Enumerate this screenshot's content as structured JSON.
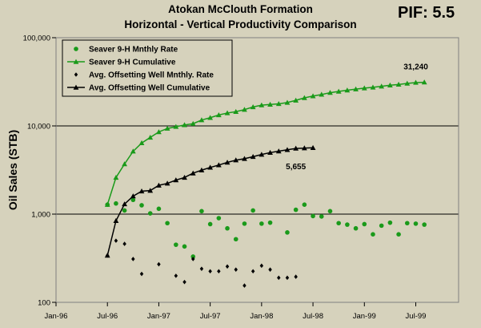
{
  "header": {
    "title_line1": "Atokan McClouth Formation",
    "title_line2": "Horizontal - Vertical Productivity Comparison",
    "pif_label": "PIF: 5.5"
  },
  "chart_data": {
    "type": "scatter",
    "yscale": "log",
    "ylabel": "Oil Sales (STB)",
    "ylim": [
      100,
      100000
    ],
    "xlim": [
      "1996-01",
      "1999-12"
    ],
    "y_ticks": [
      "100",
      "1,000",
      "10,000",
      "100,000"
    ],
    "x_ticks": [
      "Jan-96",
      "Jul-96",
      "Jan-97",
      "Jul-97",
      "Jan-98",
      "Jul-98",
      "Jan-99",
      "Jul-99"
    ],
    "grid": "horizontal major lines",
    "legend_position": "top-left",
    "colors": {
      "green": "#1a9a1a",
      "black": "#000000",
      "background": "#d6d2bc"
    },
    "series": [
      {
        "name": "Seaver 9-H Mnthly Rate",
        "marker": "circle",
        "color": "#1a9a1a",
        "line": false,
        "points": [
          [
            "1996-07",
            1280
          ],
          [
            "1996-08",
            1320
          ],
          [
            "1996-09",
            1100
          ],
          [
            "1996-10",
            1450
          ],
          [
            "1996-11",
            1260
          ],
          [
            "1996-12",
            1020
          ],
          [
            "1997-01",
            1150
          ],
          [
            "1997-02",
            790
          ],
          [
            "1997-03",
            450
          ],
          [
            "1997-04",
            430
          ],
          [
            "1997-05",
            330
          ],
          [
            "1997-06",
            1080
          ],
          [
            "1997-07",
            770
          ],
          [
            "1997-08",
            900
          ],
          [
            "1997-09",
            690
          ],
          [
            "1997-10",
            520
          ],
          [
            "1997-11",
            780
          ],
          [
            "1997-12",
            1100
          ],
          [
            "1998-01",
            780
          ],
          [
            "1998-02",
            800
          ],
          [
            "1998-04",
            620
          ],
          [
            "1998-05",
            1120
          ],
          [
            "1998-06",
            1280
          ],
          [
            "1998-07",
            950
          ],
          [
            "1998-08",
            940
          ],
          [
            "1998-09",
            1080
          ],
          [
            "1998-10",
            790
          ],
          [
            "1998-11",
            760
          ],
          [
            "1998-12",
            690
          ],
          [
            "1999-01",
            770
          ],
          [
            "1999-02",
            590
          ],
          [
            "1999-03",
            740
          ],
          [
            "1999-04",
            800
          ],
          [
            "1999-05",
            590
          ],
          [
            "1999-06",
            790
          ],
          [
            "1999-07",
            780
          ],
          [
            "1999-08",
            760
          ]
        ]
      },
      {
        "name": "Seaver 9-H Cumulative",
        "marker": "triangle",
        "color": "#1a9a1a",
        "line": true,
        "points": [
          [
            "1996-07",
            1280
          ],
          [
            "1996-08",
            2600
          ],
          [
            "1996-09",
            3700
          ],
          [
            "1996-10",
            5150
          ],
          [
            "1996-11",
            6400
          ],
          [
            "1996-12",
            7400
          ],
          [
            "1997-01",
            8550
          ],
          [
            "1997-02",
            9350
          ],
          [
            "1997-03",
            9800
          ],
          [
            "1997-04",
            10250
          ],
          [
            "1997-05",
            10600
          ],
          [
            "1997-06",
            11650
          ],
          [
            "1997-07",
            12400
          ],
          [
            "1997-08",
            13300
          ],
          [
            "1997-09",
            14000
          ],
          [
            "1997-10",
            14500
          ],
          [
            "1997-11",
            15300
          ],
          [
            "1997-12",
            16400
          ],
          [
            "1998-01",
            17200
          ],
          [
            "1998-02",
            17500
          ],
          [
            "1998-03",
            17800
          ],
          [
            "1998-04",
            18400
          ],
          [
            "1998-05",
            19500
          ],
          [
            "1998-06",
            20800
          ],
          [
            "1998-07",
            21800
          ],
          [
            "1998-08",
            22700
          ],
          [
            "1998-09",
            23800
          ],
          [
            "1998-10",
            24600
          ],
          [
            "1998-11",
            25400
          ],
          [
            "1998-12",
            26100
          ],
          [
            "1999-01",
            26800
          ],
          [
            "1999-02",
            27400
          ],
          [
            "1999-03",
            28100
          ],
          [
            "1999-04",
            28900
          ],
          [
            "1999-05",
            29500
          ],
          [
            "1999-06",
            30300
          ],
          [
            "1999-07",
            31000
          ],
          [
            "1999-08",
            31240
          ]
        ]
      },
      {
        "name": "Avg. Offsetting Well Mnthly. Rate",
        "marker": "diamond",
        "color": "#000000",
        "line": false,
        "points": [
          [
            "1996-07",
            340
          ],
          [
            "1996-08",
            500
          ],
          [
            "1996-09",
            460
          ],
          [
            "1996-10",
            310
          ],
          [
            "1996-11",
            210
          ],
          [
            "1997-01",
            270
          ],
          [
            "1997-03",
            200
          ],
          [
            "1997-04",
            170
          ],
          [
            "1997-05",
            310
          ],
          [
            "1997-06",
            240
          ],
          [
            "1997-07",
            225
          ],
          [
            "1997-08",
            225
          ],
          [
            "1997-09",
            255
          ],
          [
            "1997-10",
            235
          ],
          [
            "1997-11",
            155
          ],
          [
            "1997-12",
            225
          ],
          [
            "1998-01",
            260
          ],
          [
            "1998-02",
            235
          ],
          [
            "1998-03",
            190
          ],
          [
            "1998-04",
            190
          ],
          [
            "1998-05",
            195
          ]
        ]
      },
      {
        "name": "Avg. Offsetting Well Cumulative",
        "marker": "triangle",
        "color": "#000000",
        "line": true,
        "points": [
          [
            "1996-07",
            340
          ],
          [
            "1996-08",
            840
          ],
          [
            "1996-09",
            1300
          ],
          [
            "1996-10",
            1600
          ],
          [
            "1996-11",
            1820
          ],
          [
            "1996-12",
            1850
          ],
          [
            "1997-01",
            2120
          ],
          [
            "1997-02",
            2230
          ],
          [
            "1997-03",
            2430
          ],
          [
            "1997-04",
            2600
          ],
          [
            "1997-05",
            2910
          ],
          [
            "1997-06",
            3150
          ],
          [
            "1997-07",
            3380
          ],
          [
            "1997-08",
            3600
          ],
          [
            "1997-09",
            3860
          ],
          [
            "1997-10",
            4090
          ],
          [
            "1997-11",
            4250
          ],
          [
            "1997-12",
            4480
          ],
          [
            "1998-01",
            4740
          ],
          [
            "1998-02",
            4980
          ],
          [
            "1998-03",
            5170
          ],
          [
            "1998-04",
            5360
          ],
          [
            "1998-05",
            5555
          ],
          [
            "1998-06",
            5600
          ],
          [
            "1998-07",
            5655
          ]
        ]
      }
    ],
    "annotations": [
      {
        "text": "31,240",
        "x": "1999-07",
        "y": 31240
      },
      {
        "text": "5,655",
        "x": "1998-05",
        "y": 5655
      }
    ]
  }
}
